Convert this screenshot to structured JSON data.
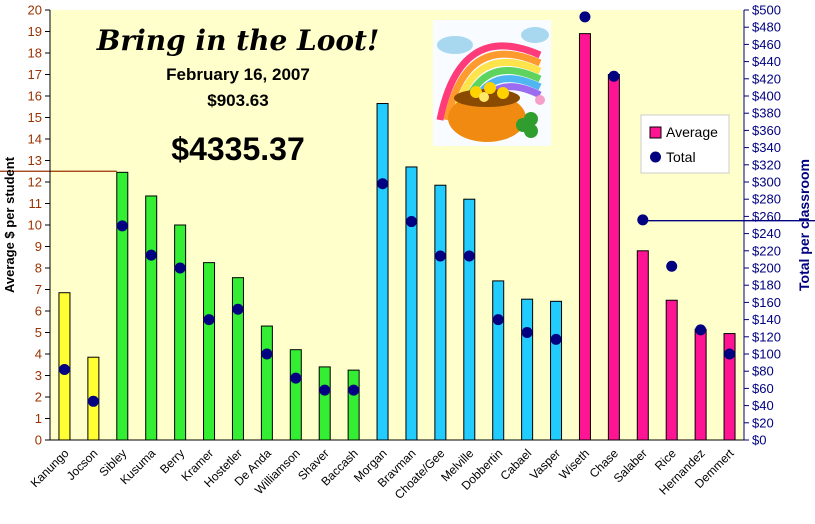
{
  "header": {
    "title": "Bring in the Loot!",
    "date": "February 16, 2007",
    "day_amount": "$903.63",
    "grand_total": "$4335.37"
  },
  "legend": {
    "average_label": "Average",
    "total_label": "Total"
  },
  "chart_data": {
    "type": "bar",
    "categories": [
      "Kanungo",
      "Jocson",
      "Sibley",
      "Kusuma",
      "Berry",
      "Kramer",
      "Hostetler",
      "De Anda",
      "Williamson",
      "Shaver",
      "Baccash",
      "Morgan",
      "Bravman",
      "Choate/Gee",
      "Melville",
      "Dobbertin",
      "Cabael",
      "Vasper",
      "Wiseth",
      "Chase",
      "Salaber",
      "Rice",
      "Hernandez",
      "Demmert"
    ],
    "bar_colors": [
      "#ffff33",
      "#ffff33",
      "#33ee33",
      "#33ee33",
      "#33ee33",
      "#33ee33",
      "#33ee33",
      "#33ee33",
      "#33ee33",
      "#33ee33",
      "#33ee33",
      "#22ccff",
      "#22ccff",
      "#22ccff",
      "#22ccff",
      "#22ccff",
      "#22ccff",
      "#22ccff",
      "#ff1493",
      "#ff1493",
      "#ff1493",
      "#ff1493",
      "#ff1493",
      "#ff1493"
    ],
    "series": [
      {
        "name": "Average",
        "axis": "left",
        "type": "bar",
        "color": "#ff1493",
        "values": [
          6.85,
          3.85,
          12.45,
          11.35,
          10.0,
          8.25,
          7.55,
          5.3,
          4.2,
          3.4,
          3.25,
          15.65,
          12.7,
          11.85,
          11.2,
          7.4,
          6.55,
          6.45,
          18.9,
          17.0,
          8.8,
          6.5,
          5.15,
          4.95
        ]
      },
      {
        "name": "Total",
        "axis": "right",
        "type": "scatter",
        "color": "#000080",
        "values": [
          82,
          45,
          249,
          215,
          200,
          140,
          152,
          100,
          72,
          58,
          58,
          298,
          254,
          214,
          214,
          140,
          125,
          117,
          492,
          423,
          256,
          202,
          128,
          100
        ]
      }
    ],
    "y_left": {
      "label": "Average $ per student",
      "min": 0,
      "max": 20,
      "step": 1,
      "color": "#993300"
    },
    "y_right": {
      "label": "Total per classroom",
      "min": 0,
      "max": 500,
      "step": 20,
      "prefix": "$",
      "color": "#000080"
    },
    "reference_lines": [
      {
        "axis": "left",
        "value": 12.5,
        "side": "left",
        "color": "#993300"
      },
      {
        "axis": "right",
        "value": 255,
        "side": "right",
        "color": "#000080"
      }
    ],
    "plot_background": "#ffffcc",
    "grid": false,
    "legend_position": "right"
  }
}
